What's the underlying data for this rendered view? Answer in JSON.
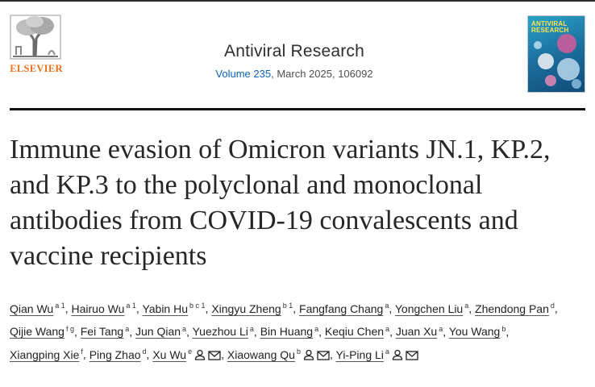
{
  "publisher": {
    "name": "ELSEVIER"
  },
  "journal": {
    "title": "Antiviral Research",
    "volume_link": "Volume 235",
    "issue_rest": ", March 2025, 106092",
    "cover_title": "ANTIVIRAL RESEARCH"
  },
  "article": {
    "title": "Immune evasion of Omicron variants JN.1, KP.2, and KP.3 to the polyclonal and monoclonal antibodies from COVID-19 convalescents and vaccine recipients"
  },
  "authors": [
    {
      "name": "Qian Wu",
      "sup": "a 1",
      "sep": ", "
    },
    {
      "name": "Hairuo Wu",
      "sup": "a 1",
      "sep": ", "
    },
    {
      "name": "Yabin Hu",
      "sup": "b c 1",
      "sep": ", "
    },
    {
      "name": "Xingyu Zheng",
      "sup": "b 1",
      "sep": ", "
    },
    {
      "name": "Fangfang Chang",
      "sup": "a",
      "sep": ", "
    },
    {
      "name": "Yongchen Liu",
      "sup": "a",
      "sep": ", "
    },
    {
      "name": "Zhendong Pan",
      "sup": "d",
      "sep": ", "
    },
    {
      "name": "Qijie Wang",
      "sup": "f g",
      "sep": ", "
    },
    {
      "name": "Fei Tang",
      "sup": "a",
      "sep": ", "
    },
    {
      "name": "Jun Qian",
      "sup": "a",
      "sep": ", "
    },
    {
      "name": "Yuezhou Li",
      "sup": "a",
      "sep": ", "
    },
    {
      "name": "Bin Huang",
      "sup": "a",
      "sep": ", "
    },
    {
      "name": "Keqiu Chen",
      "sup": "a",
      "sep": ", "
    },
    {
      "name": "Juan Xu",
      "sup": "a",
      "sep": ", "
    },
    {
      "name": "You Wang",
      "sup": "b",
      "sep": ", "
    },
    {
      "name": "Xiangping Xie",
      "sup": "f",
      "sep": ", "
    },
    {
      "name": "Ping Zhao",
      "sup": "d",
      "sep": ", "
    },
    {
      "name": "Xu Wu",
      "sup": "e",
      "sep": ", ",
      "corresponding": true
    },
    {
      "name": "Xiaowang Qu",
      "sup": "b",
      "sep": ", ",
      "corresponding": true
    },
    {
      "name": "Yi-Ping Li",
      "sup": "a",
      "sep": "",
      "corresponding": true
    }
  ],
  "icons": {
    "person": "person-icon",
    "email": "envelope-icon"
  },
  "colors": {
    "publisher_orange": "#e9711c",
    "link_blue": "#0c62b8",
    "rule": "#111111"
  }
}
